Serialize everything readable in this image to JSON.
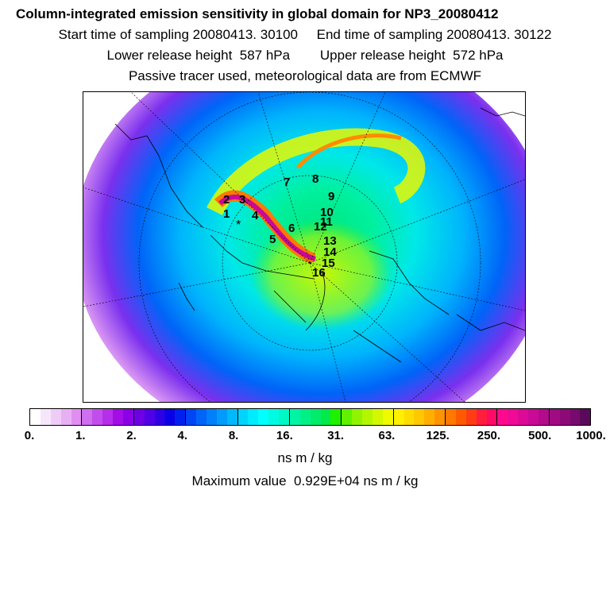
{
  "header": {
    "title": "Column-integrated emission sensitivity in global domain for NP3_20080412",
    "line2": "Start time of sampling 20080413. 30100     End time of sampling 20080413. 30122",
    "line3": "Lower release height  587 hPa        Upper release height  572 hPa",
    "line4": "Passive tracer used, meteorological data are from ECMWF"
  },
  "map": {
    "projection": "polar stereographic (north pole)",
    "track_labels": [
      "1",
      "2",
      "3",
      "4",
      "5",
      "6",
      "7",
      "8",
      "9",
      "10",
      "11",
      "12",
      "13",
      "14",
      "15",
      "16"
    ]
  },
  "colorbar": {
    "tick_labels": [
      "0.",
      "1.",
      "2.",
      "4.",
      "8.",
      "16.",
      "31.",
      "63.",
      "125.",
      "250.",
      "500.",
      "1000."
    ],
    "colors": [
      "#ffffff",
      "#f6e6fb",
      "#efccf8",
      "#e8b0f4",
      "#e08ff1",
      "#cd6fee",
      "#c14eec",
      "#b62ee9",
      "#a30de6",
      "#8b00e6",
      "#6e00e6",
      "#5000e6",
      "#2f00e6",
      "#0a00e6",
      "#0020f0",
      "#0045f5",
      "#0064f8",
      "#0080fa",
      "#009cfb",
      "#00b8fc",
      "#00d4fd",
      "#00ecfe",
      "#00ffff",
      "#00fbe2",
      "#00f8c4",
      "#00f4a6",
      "#00f088",
      "#00ec6a",
      "#00ea4a",
      "#1ef000",
      "#60f000",
      "#90f400",
      "#b4f600",
      "#d4f800",
      "#f0fa00",
      "#ffef00",
      "#ffdc00",
      "#ffc800",
      "#ffaf00",
      "#ff9400",
      "#ff7800",
      "#ff5a00",
      "#ff3c14",
      "#ff1e3c",
      "#ff0a64",
      "#ff0a8c",
      "#f00a96",
      "#dc0a96",
      "#c80a96",
      "#b40a8c",
      "#a00a82",
      "#8c0a78",
      "#780a6e",
      "#5a0a5a"
    ],
    "unit": "ns m / kg"
  },
  "max_value_text": "Maximum value  0.929E+04 ns m / kg"
}
